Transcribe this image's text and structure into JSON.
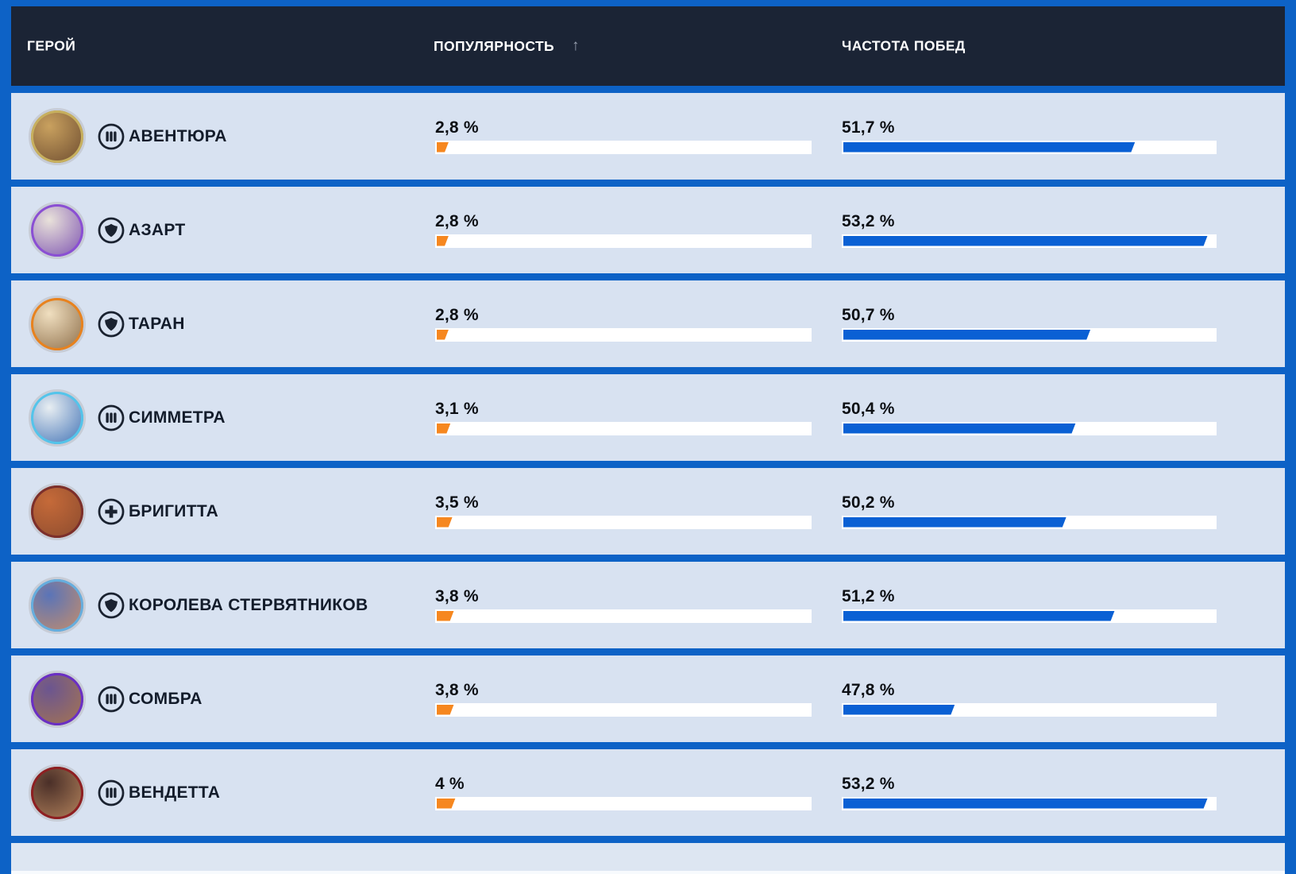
{
  "header": {
    "hero": "ГЕРОЙ",
    "popularity": "ПОПУЛЯРНОСТЬ",
    "sort_arrow": "↑",
    "win_rate": "ЧАСТОТА ПОБЕД"
  },
  "colors": {
    "frame_blue": "#0d62c6",
    "header_bg": "#1b2435",
    "row_bg": "#d8e2f1",
    "bar_track": "#ffffff",
    "popularity_fill": "#f6871f",
    "winrate_fill": "#0a60d4",
    "header_text": "#ffffff",
    "name_text": "#131c2b"
  },
  "rows": [
    {
      "name": "АВЕНТЮРА",
      "role": "damage",
      "popularity": "2,8 %",
      "popularity_fill_pct": 3.2,
      "win_rate": "51,7 %",
      "win_fill_pct": 78.5,
      "ring": "#c7b05e",
      "avatar_colors": [
        "#c9a15f",
        "#6b4a2e"
      ]
    },
    {
      "name": "АЗАРТ",
      "role": "tank",
      "popularity": "2,8 %",
      "popularity_fill_pct": 3.2,
      "win_rate": "53,2 %",
      "win_fill_pct": 98,
      "ring": "#8a4fd3",
      "avatar_colors": [
        "#e9e2da",
        "#7a4fb0"
      ]
    },
    {
      "name": "ТАРАН",
      "role": "tank",
      "popularity": "2,8 %",
      "popularity_fill_pct": 3.2,
      "win_rate": "50,7 %",
      "win_fill_pct": 66.5,
      "ring": "#e8821e",
      "avatar_colors": [
        "#f0dfc0",
        "#8a6a45"
      ]
    },
    {
      "name": "СИММЕТРА",
      "role": "damage",
      "popularity": "3,1 %",
      "popularity_fill_pct": 3.7,
      "win_rate": "50,4 %",
      "win_fill_pct": 62.5,
      "ring": "#54c4ea",
      "avatar_colors": [
        "#e8eef2",
        "#3d6fb4"
      ]
    },
    {
      "name": "БРИГИТТА",
      "role": "support",
      "popularity": "3,5 %",
      "popularity_fill_pct": 4.2,
      "win_rate": "50,2 %",
      "win_fill_pct": 60,
      "ring": "#7c2f2b",
      "avatar_colors": [
        "#c56a39",
        "#8a4a2e"
      ]
    },
    {
      "name": "КОРОЛЕВА СТЕРВЯТНИКОВ",
      "role": "tank",
      "popularity": "3,8 %",
      "popularity_fill_pct": 4.6,
      "win_rate": "51,2 %",
      "win_fill_pct": 73,
      "ring": "#66aede",
      "avatar_colors": [
        "#5a74b8",
        "#c98e68"
      ]
    },
    {
      "name": "СОМБРА",
      "role": "damage",
      "popularity": "3,8 %",
      "popularity_fill_pct": 4.6,
      "win_rate": "47,8 %",
      "win_fill_pct": 30,
      "ring": "#6a2fc4",
      "avatar_colors": [
        "#6b5590",
        "#a8764e"
      ]
    },
    {
      "name": "ВЕНДЕТТА",
      "role": "damage",
      "popularity": "4 %",
      "popularity_fill_pct": 5,
      "win_rate": "53,2 %",
      "win_fill_pct": 98,
      "ring": "#8e1f22",
      "avatar_colors": [
        "#4a2f28",
        "#b8865e"
      ]
    }
  ]
}
